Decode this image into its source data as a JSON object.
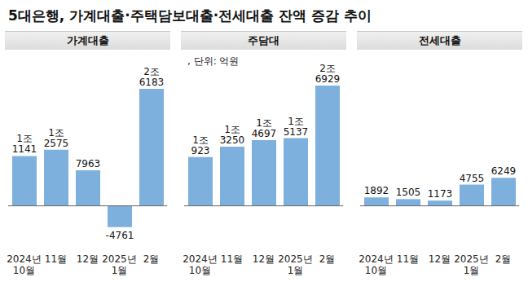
{
  "title": "5대은행, 가계대출·주택담보대출·전세대출 잔액 증감 추이",
  "chart_data": [
    {
      "type": "bar",
      "title": "가계대출",
      "categories": [
        "2024년 10월",
        "11월",
        "12월",
        "2025년 1월",
        "2월"
      ],
      "values": [
        11141,
        12575,
        7963,
        -4761,
        26183
      ],
      "value_labels": [
        "1조 1141",
        "1조 2575",
        "7963",
        "-4761",
        "2조 6183"
      ],
      "data_labels": true,
      "color": "#7eb0de",
      "ylim": [
        -9000,
        28000
      ],
      "yticks": [
        0
      ],
      "grid": true,
      "tick_labels": "x"
    },
    {
      "type": "bar",
      "title": "주담대",
      "subtitle": ", 단위: 억원",
      "categories": [
        "2024년 10월",
        "11월",
        "12월",
        "2025년 1월",
        "2월"
      ],
      "values": [
        10923,
        13250,
        14697,
        15137,
        26929
      ],
      "value_labels": [
        "1조 923",
        "1조 3250",
        "1조 4697",
        "1조 5137",
        "2조 6929"
      ],
      "data_labels": true,
      "color": "#7eb0de",
      "ylim": [
        -9000,
        28000
      ],
      "yticks": [
        0
      ],
      "grid": true,
      "tick_labels": "x"
    },
    {
      "type": "bar",
      "title": "전세대출",
      "categories": [
        "2024년 10월",
        "11월",
        "12월",
        "2025년 1월",
        "2월"
      ],
      "values": [
        1892,
        1505,
        1173,
        4755,
        6249
      ],
      "value_labels": [
        "1892",
        "1505",
        "1173",
        "4755",
        "6249"
      ],
      "data_labels": true,
      "color": "#7eb0de",
      "ylim": [
        -9000,
        28000
      ],
      "yticks": [
        0
      ],
      "grid": true,
      "tick_labels": "x"
    }
  ]
}
